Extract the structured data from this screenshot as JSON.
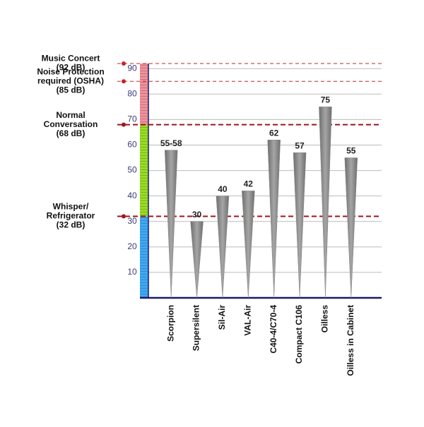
{
  "chart_data": {
    "type": "bar",
    "categories": [
      "Scorpion",
      "Supersilent",
      "Sil-Air",
      "VAL-Air",
      "C40-4/C70-4",
      "Compact C106",
      "Oilless",
      "Oilless in Cabinet"
    ],
    "values": [
      58,
      30,
      40,
      42,
      62,
      57,
      75,
      55
    ],
    "value_labels": [
      "55-58",
      "30",
      "40",
      "42",
      "62",
      "57",
      "75",
      "55"
    ],
    "color": "#8a8a8a",
    "ylim": [
      0,
      92
    ],
    "yticks": [
      10,
      20,
      30,
      40,
      50,
      60,
      70,
      80,
      90
    ],
    "grid": true,
    "bands": [
      {
        "from": 0,
        "to": 32,
        "color": "#3fa9f5"
      },
      {
        "from": 32,
        "to": 68,
        "color": "#99dd22"
      },
      {
        "from": 68,
        "to": 92,
        "color": "#f2909a"
      }
    ],
    "reference_lines": [
      {
        "value": 92,
        "label": [
          "Music Concert",
          "(92 dB)"
        ],
        "color": "#c0272d",
        "style": "thin"
      },
      {
        "value": 85,
        "label": [
          "Noise Protection",
          "required (OSHA)",
          "(85 dB)"
        ],
        "color": "#c0272d",
        "style": "thin"
      },
      {
        "value": 68,
        "label": [
          "Normal",
          "Conversation",
          "(68 dB)"
        ],
        "color": "#a0141c",
        "style": "thick"
      },
      {
        "value": 32,
        "label": [
          "Whisper/",
          "Refrigerator",
          "(32 dB)"
        ],
        "color": "#a0141c",
        "style": "thick"
      }
    ]
  }
}
